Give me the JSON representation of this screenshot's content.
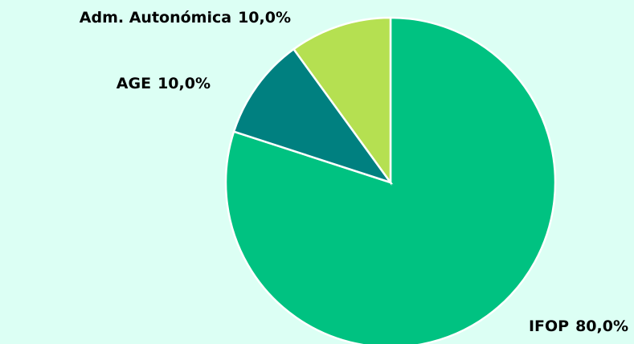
{
  "chart_data": {
    "type": "pie",
    "categories": [
      "IFOP",
      "AGE",
      "Adm. Autonómica"
    ],
    "values": [
      80,
      10,
      10
    ],
    "value_labels": [
      "80,0%",
      "10,0%",
      "10,0%"
    ],
    "colors": [
      "#00c281",
      "#008080",
      "#b5e051"
    ]
  }
}
